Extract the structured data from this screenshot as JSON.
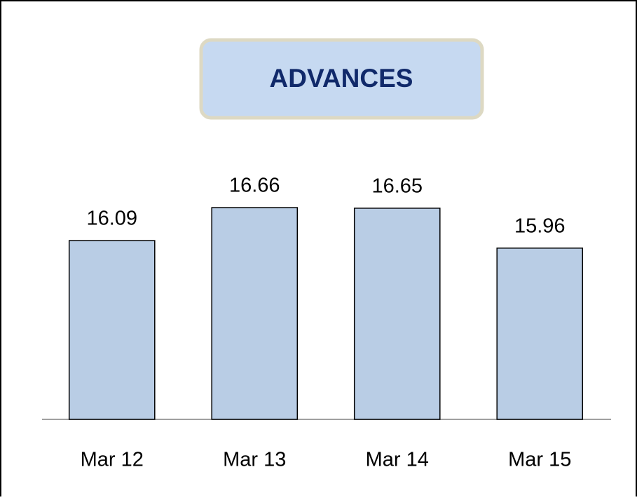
{
  "chart_data": {
    "type": "bar",
    "title": "ADVANCES",
    "categories": [
      "Mar 12",
      "Mar 13",
      "Mar 14",
      "Mar 15"
    ],
    "values": [
      16.09,
      16.66,
      16.65,
      15.96
    ],
    "color": "#b9cde5",
    "ylim": [
      13,
      18
    ]
  }
}
